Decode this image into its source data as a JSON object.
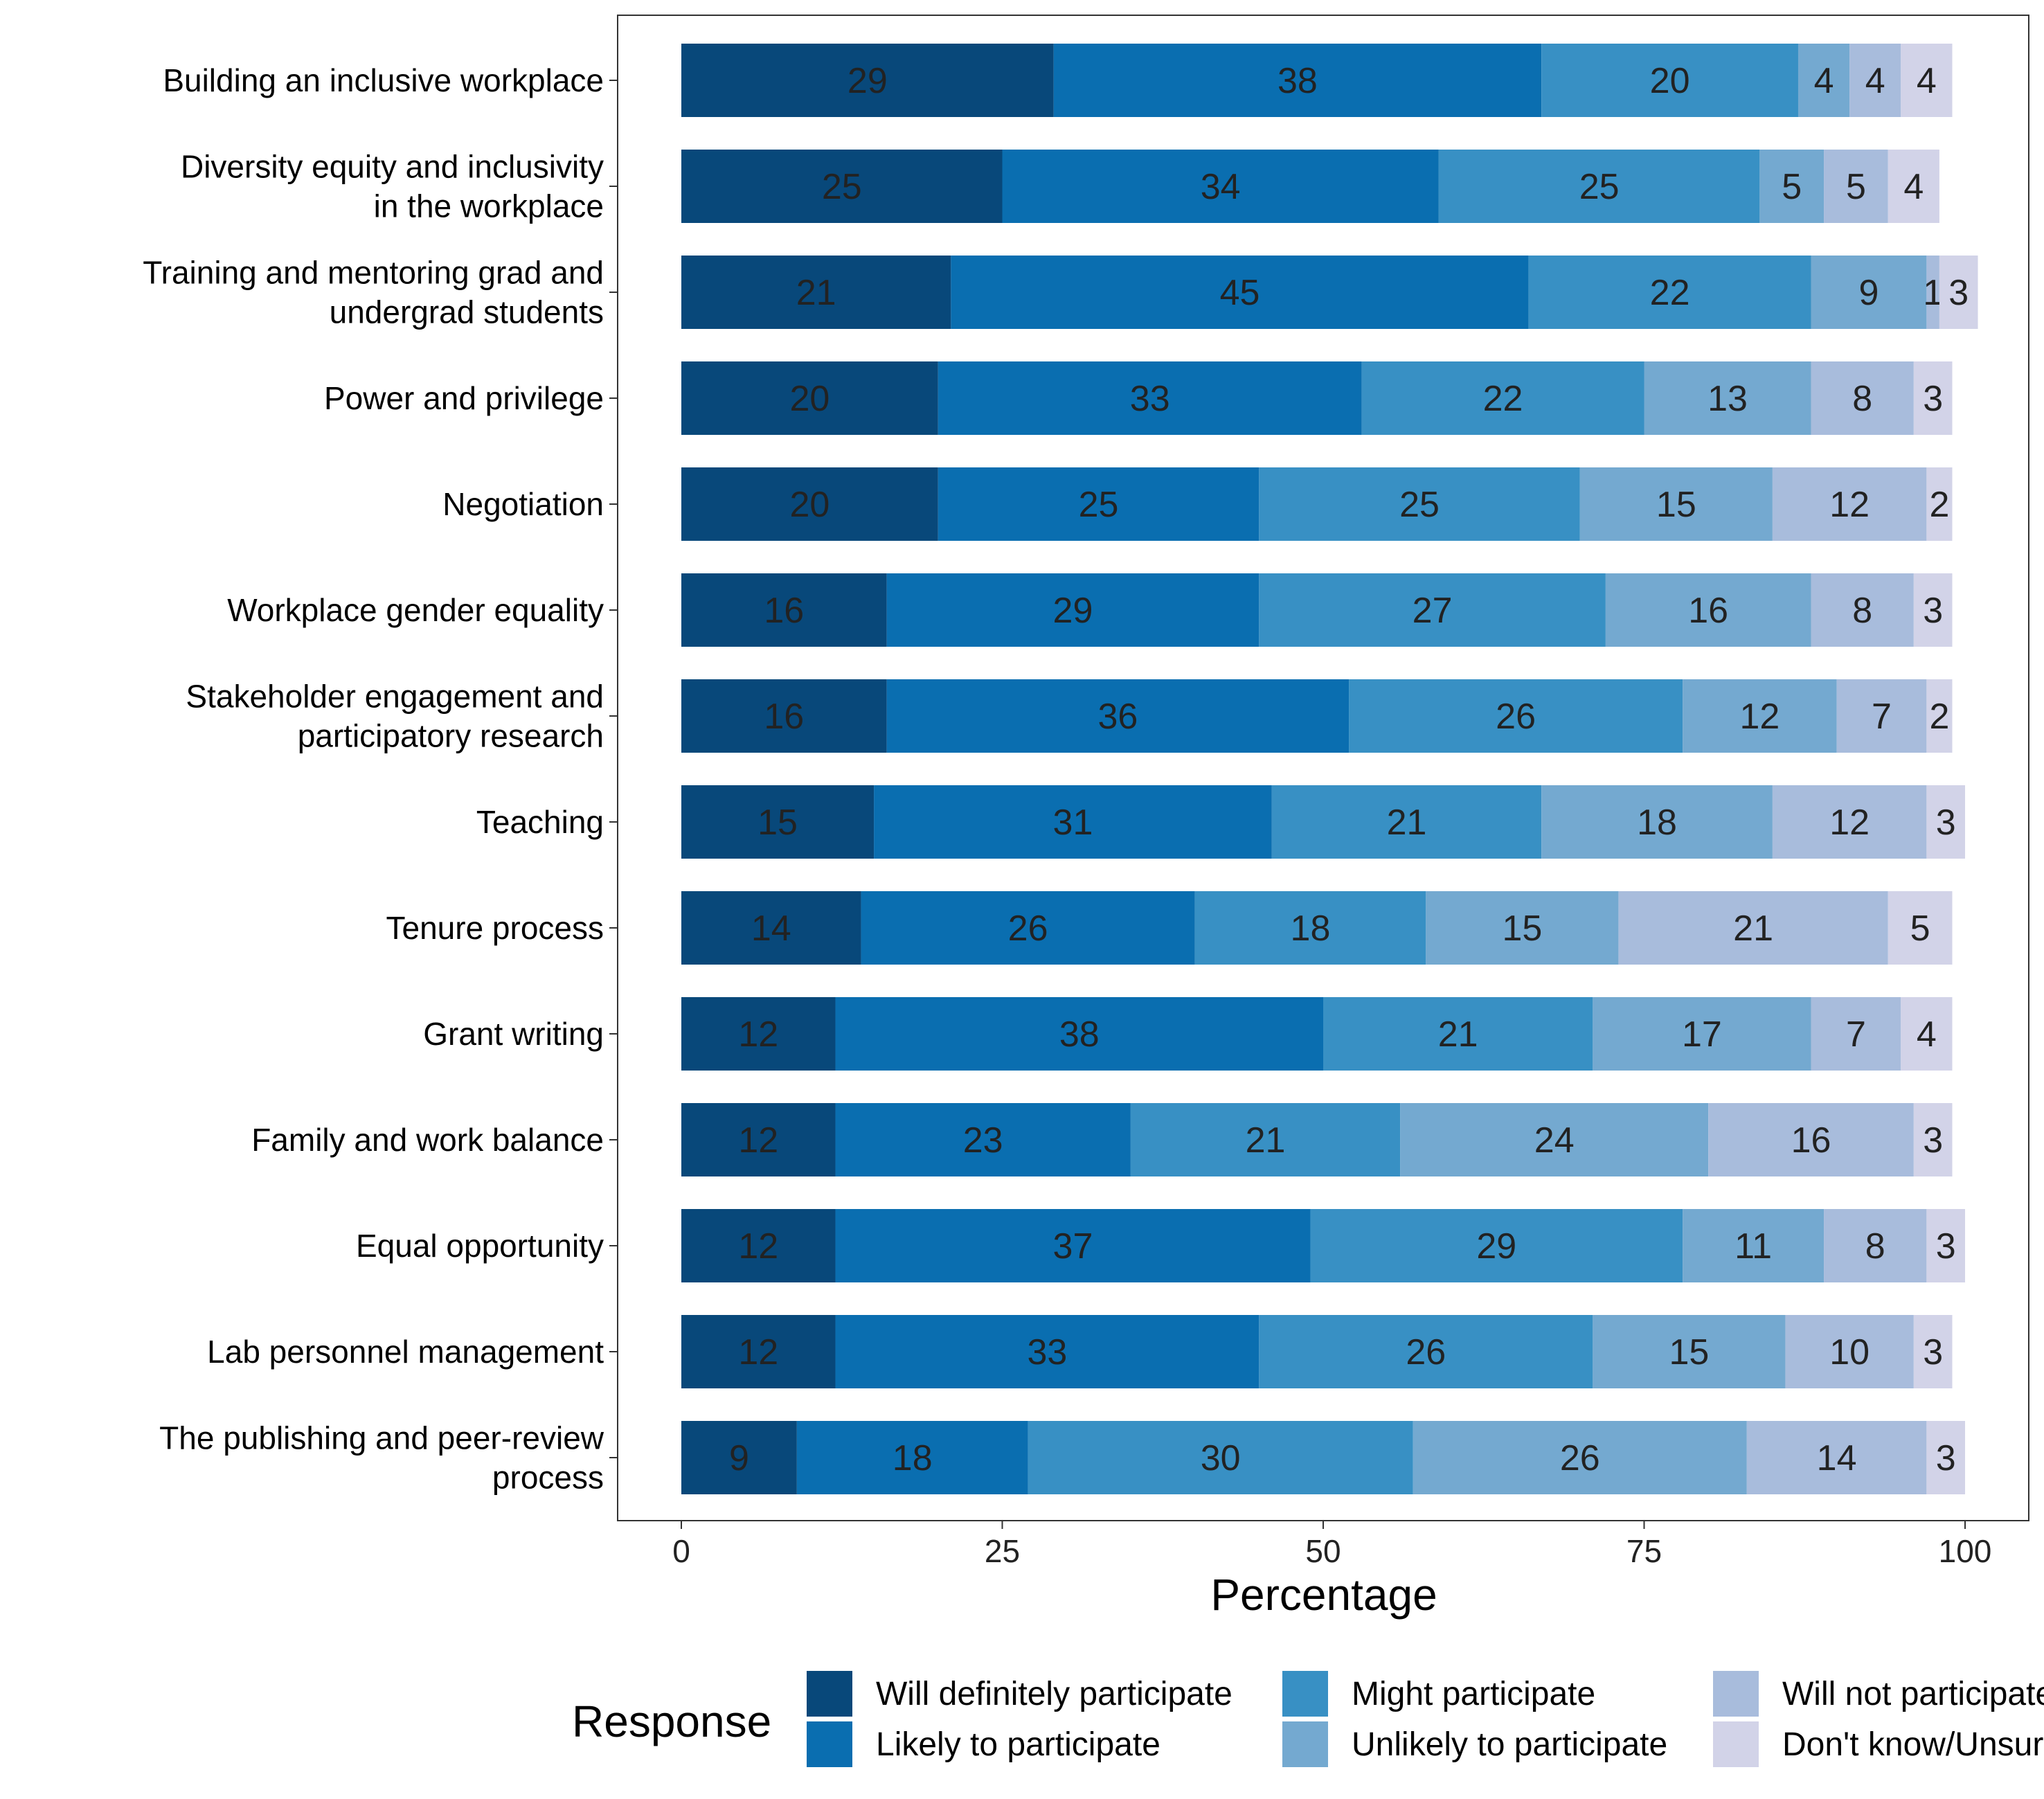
{
  "chart_data": {
    "type": "bar",
    "orientation": "horizontal",
    "stacked": true,
    "categories": [
      "Building an inclusive workplace",
      "Diversity equity and inclusivity\nin the workplace",
      "Training and mentoring grad and\nundergrad students",
      "Power and privilege",
      "Negotiation",
      "Workplace gender equality",
      "Stakeholder engagement and\nparticipatory research",
      "Teaching",
      "Tenure process",
      "Grant writing",
      "Family and work balance",
      "Equal opportunity",
      "Lab personnel management",
      "The publishing and peer-review\nprocess"
    ],
    "series": [
      {
        "name": "Will definitely participate",
        "color": "#08487a",
        "values": [
          29,
          25,
          21,
          20,
          20,
          16,
          16,
          15,
          14,
          12,
          12,
          12,
          12,
          9
        ]
      },
      {
        "name": "Likely to participate",
        "color": "#0a6eb0",
        "values": [
          38,
          34,
          45,
          33,
          25,
          29,
          36,
          31,
          26,
          38,
          23,
          37,
          33,
          18
        ]
      },
      {
        "name": "Might participate",
        "color": "#3890c4",
        "values": [
          20,
          25,
          22,
          22,
          25,
          27,
          26,
          21,
          18,
          21,
          21,
          29,
          26,
          30
        ]
      },
      {
        "name": "Unlikely to participate",
        "color": "#74a9d0",
        "values": [
          4,
          5,
          9,
          13,
          15,
          16,
          12,
          18,
          15,
          17,
          24,
          11,
          15,
          26
        ]
      },
      {
        "name": "Will not participate",
        "color": "#a8bcdc",
        "values": [
          4,
          5,
          1,
          8,
          12,
          8,
          7,
          12,
          21,
          7,
          16,
          8,
          10,
          14
        ]
      },
      {
        "name": "Don't know/Unsure",
        "color": "#d2d3e8",
        "values": [
          4,
          4,
          3,
          3,
          2,
          3,
          2,
          3,
          5,
          4,
          3,
          3,
          3,
          3
        ]
      }
    ],
    "xlabel": "Percentage",
    "ylabel": "",
    "xlim": [
      0,
      100
    ],
    "xticks": [
      0,
      25,
      50,
      75,
      100
    ],
    "legend_title": "Response",
    "legend_position": "bottom",
    "grid": false
  }
}
